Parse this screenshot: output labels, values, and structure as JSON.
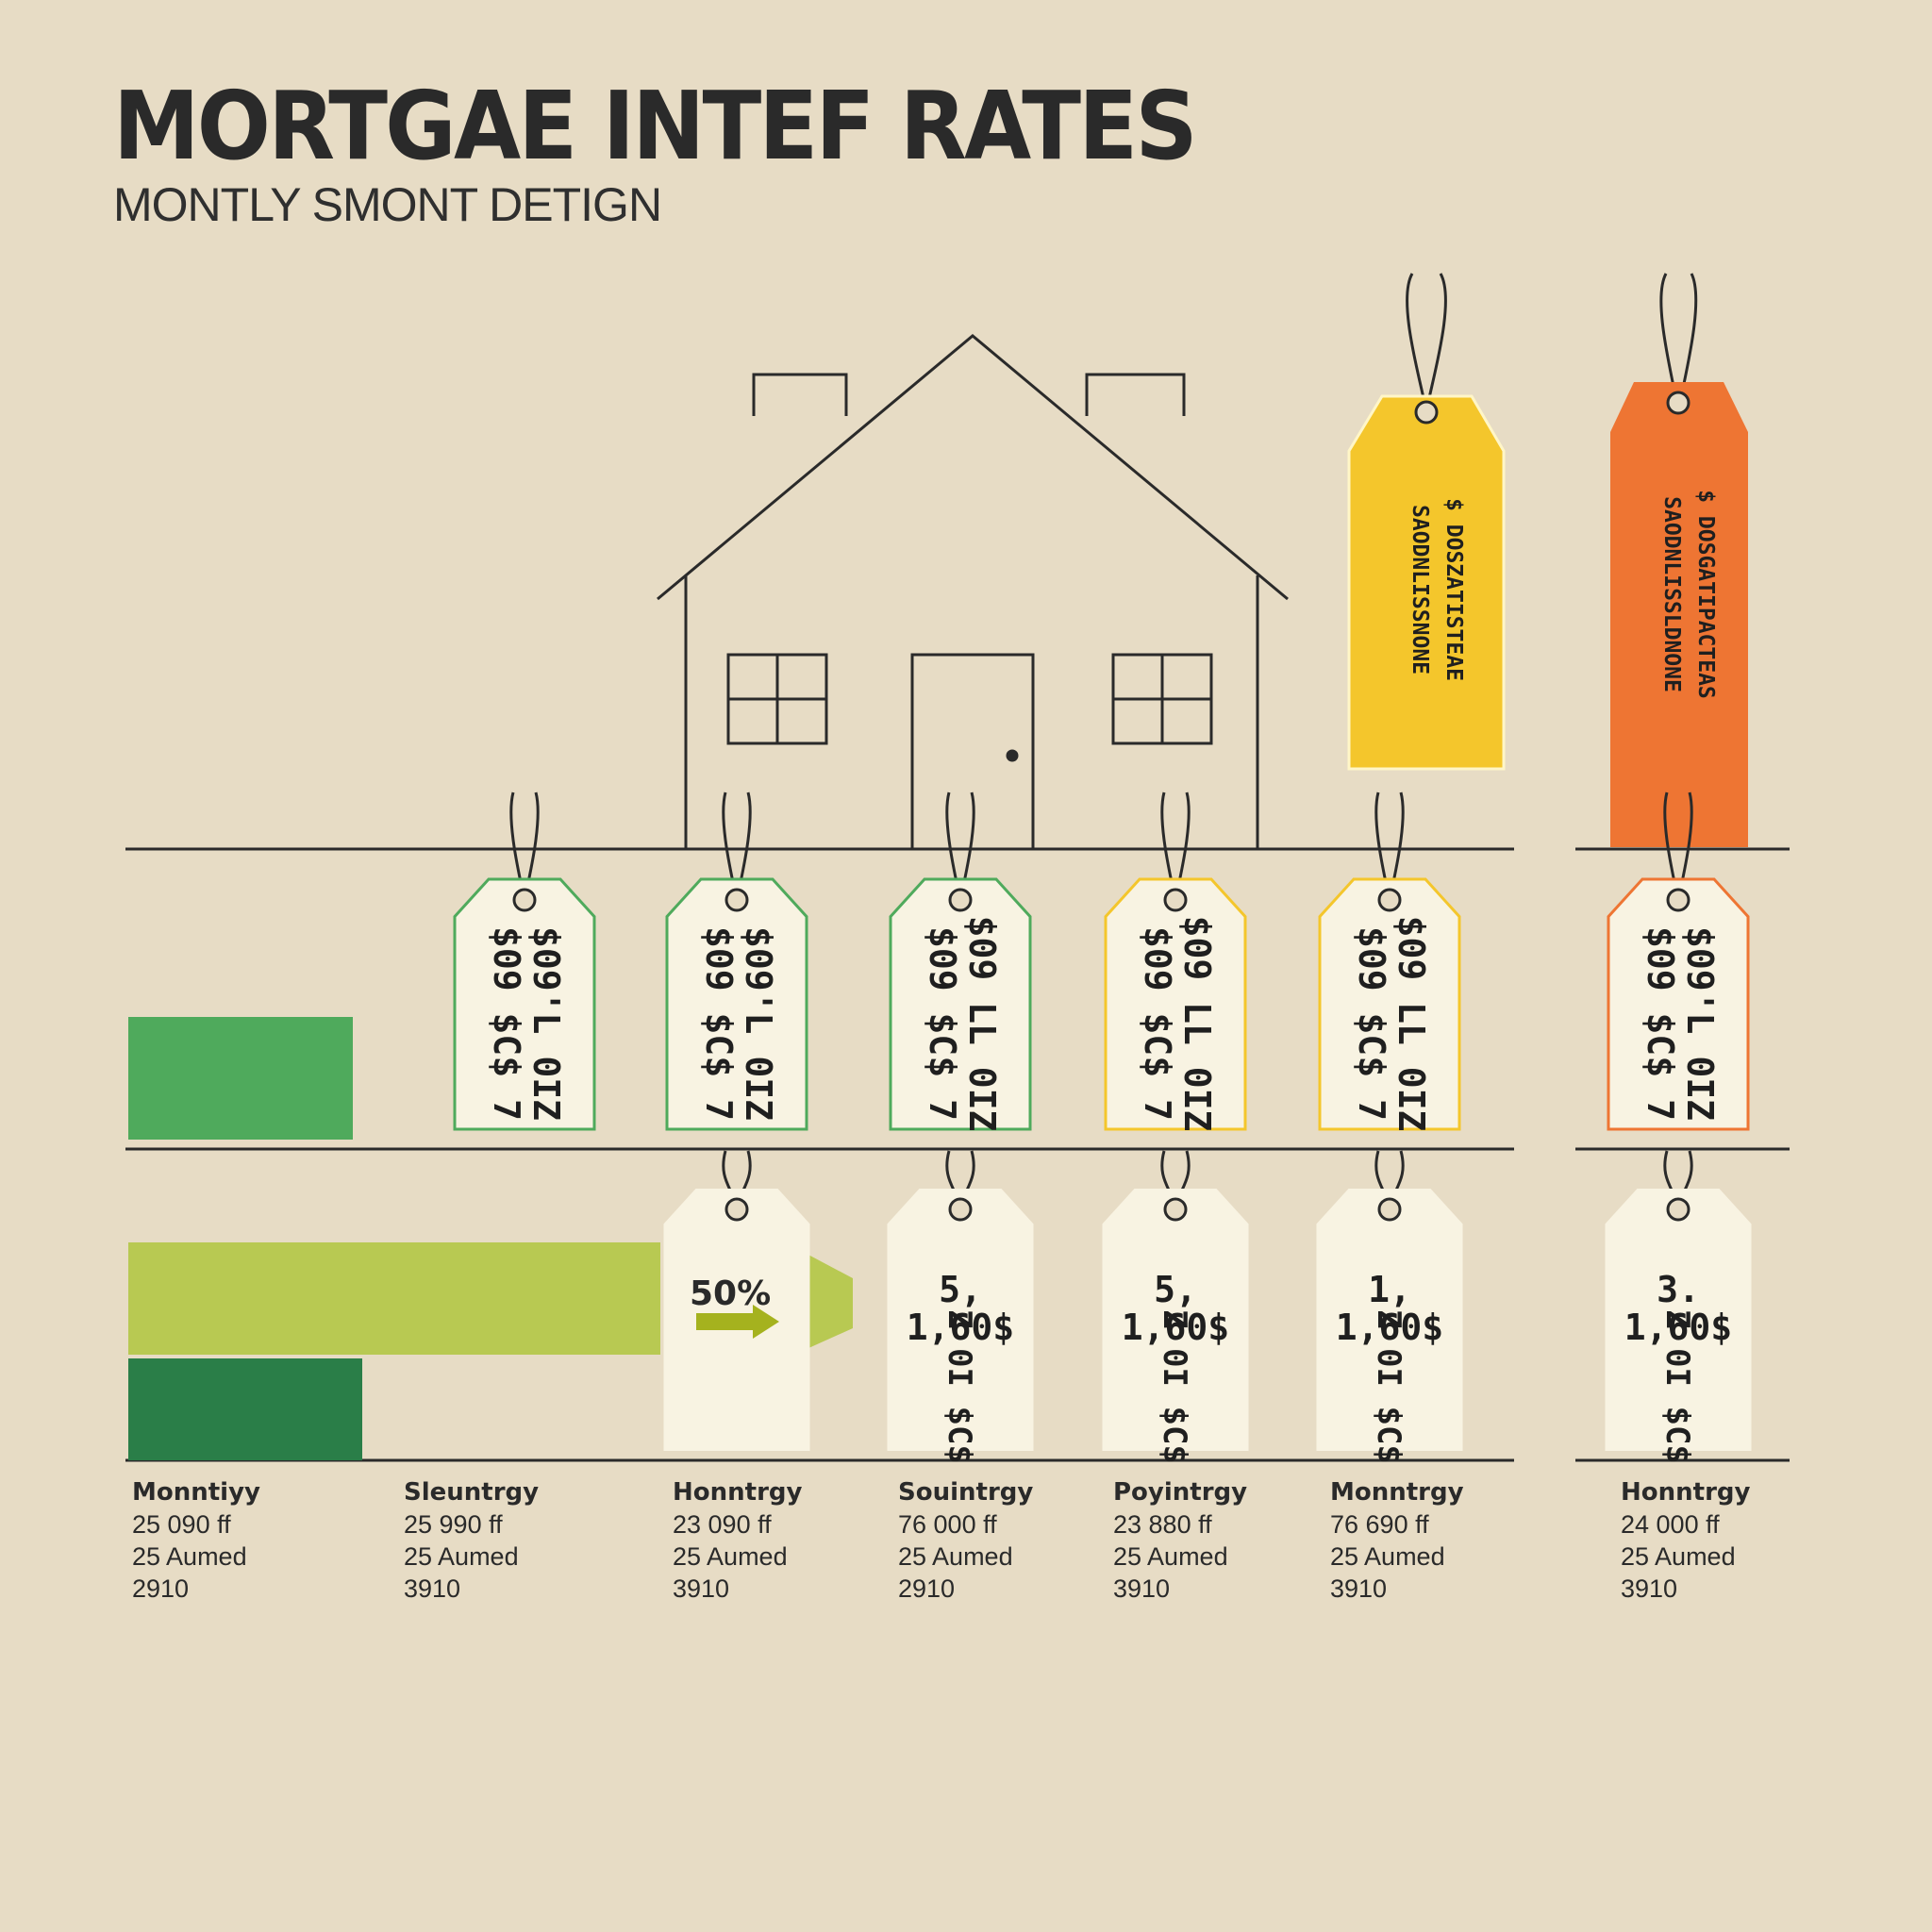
{
  "title": "MORTGAE INTEF RATES",
  "subtitle": "MONTLY SMONT DETIGN",
  "colors": {
    "background": "#e7dcc5",
    "green": "#4faa5c",
    "dark_green": "#2a7e48",
    "lime": "#b8c952",
    "yellow": "#f4c62c",
    "orange": "#ee7533",
    "tag_paper": "#f8f3e2"
  },
  "top_tags": [
    {
      "line1": "$ DOSZATISTEAE",
      "line2": "SAODNLISSNONE"
    },
    {
      "line1": "$ DOSGATIPACTEAS",
      "line2": "SAODNLISSLDNONE"
    }
  ],
  "middle_tags": [
    {
      "line1": "$09'L 0IZ",
      "line2": "$09 $C$ 7",
      "border": "green"
    },
    {
      "line1": "$09'L 0IZ",
      "line2": "$09 $C$ 7",
      "border": "green"
    },
    {
      "line1": "$09 LL 0IZ",
      "line2": "$09 $C$ 7",
      "border": "green"
    },
    {
      "line1": "$09 LL 0IZ",
      "line2": "$09 $C$ 7",
      "border": "yellow"
    },
    {
      "line1": "$09 LL 0IZ",
      "line2": "$09 $C$ 7",
      "border": "yellow"
    },
    {
      "line1": "$09'L 0IZ",
      "line2": "$09 $C$ 7",
      "border": "orange"
    }
  ],
  "bottom_tags": [
    {
      "label": "50%"
    },
    {
      "line1": "5,",
      "line2": "1,60$",
      "line3": "Z 0I $C$"
    },
    {
      "line1": "5,",
      "line2": "1,60$",
      "line3": "Z 0I $C$"
    },
    {
      "line1": "1,",
      "line2": "1,60$",
      "line3": "Z 0I $C$"
    },
    {
      "line1": "3.",
      "line2": "1,60$",
      "line3": "Z 0I $C$"
    }
  ],
  "columns": [
    {
      "head": "Monntiyy",
      "line1": "25 090 ff",
      "line2": "25 Aumed",
      "line3": "2910"
    },
    {
      "head": "Sleuntrgy",
      "line1": "25 990 ff",
      "line2": "25 Aumed",
      "line3": "3910"
    },
    {
      "head": "Honntrgy",
      "line1": "23 090 ff",
      "line2": "25 Aumed",
      "line3": "3910"
    },
    {
      "head": "Souintrgy",
      "line1": "76 000 ff",
      "line2": "25 Aumed",
      "line3": "2910"
    },
    {
      "head": "Poyintrgy",
      "line1": "23 880 ff",
      "line2": "25 Aumed",
      "line3": "3910"
    },
    {
      "head": "Monntrgy",
      "line1": "76 690 ff",
      "line2": "25 Aumed",
      "line3": "3910"
    },
    {
      "head": "Honntrgy",
      "line1": "24 000 ff",
      "line2": "25 Aumed",
      "line3": "3910"
    }
  ]
}
